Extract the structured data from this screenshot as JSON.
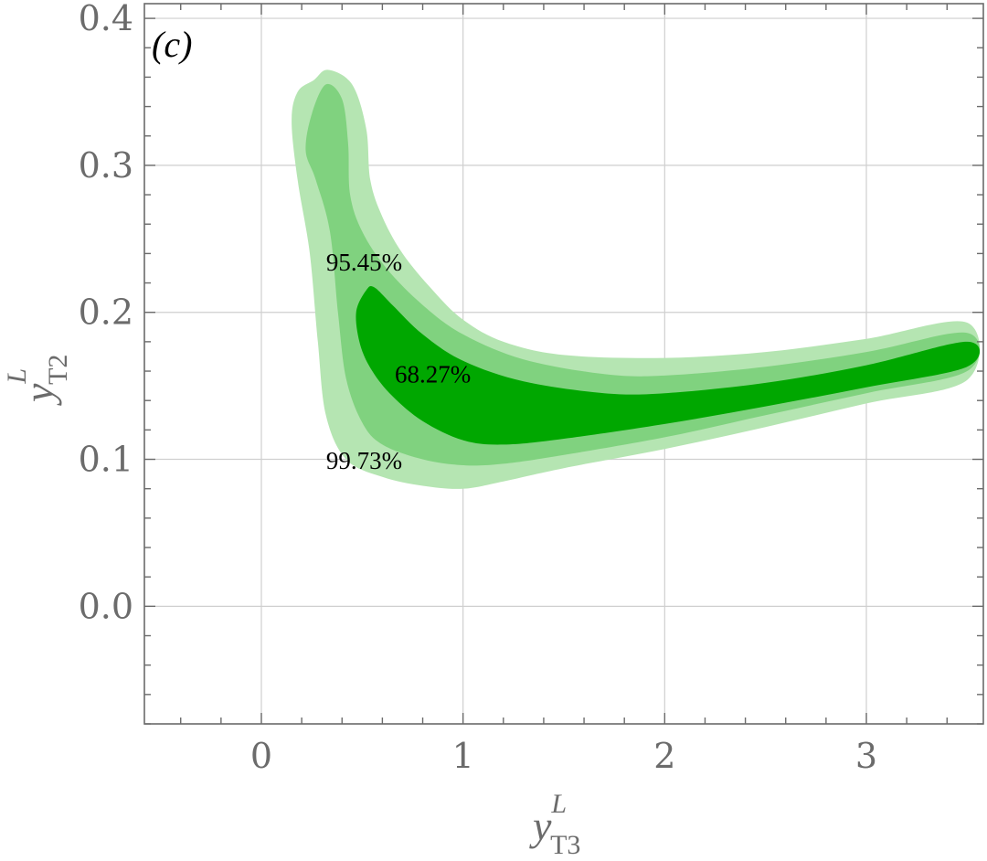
{
  "chart_data": {
    "type": "contour",
    "panel_label": "(c)",
    "xlabel": {
      "base": "y",
      "sup": "L",
      "sub": "T3"
    },
    "ylabel": {
      "base": "y",
      "sup": "L",
      "sub": "T2"
    },
    "xlim": [
      -0.58,
      3.58
    ],
    "ylim": [
      -0.08,
      0.41
    ],
    "x_ticks": [
      0,
      1,
      2,
      3
    ],
    "x_tick_labels": [
      "0",
      "1",
      "2",
      "3"
    ],
    "y_ticks": [
      0.0,
      0.1,
      0.2,
      0.3,
      0.4
    ],
    "y_tick_labels": [
      "0.0",
      "0.1",
      "0.2",
      "0.3",
      "0.4"
    ],
    "grid": true,
    "colors": {
      "region_99": "#b5e5b2",
      "region_95": "#80d27f",
      "region_68": "#00a700",
      "grid": "#cfcfcf",
      "axis": "#6b6b6b"
    },
    "regions": [
      {
        "label": "99.73%",
        "label_at": [
          0.51,
          0.099
        ],
        "boundary": [
          [
            0.26,
            0.358
          ],
          [
            0.33,
            0.365
          ],
          [
            0.45,
            0.355
          ],
          [
            0.52,
            0.325
          ],
          [
            0.54,
            0.29
          ],
          [
            0.6,
            0.265
          ],
          [
            0.7,
            0.24
          ],
          [
            0.85,
            0.215
          ],
          [
            1.0,
            0.195
          ],
          [
            1.2,
            0.18
          ],
          [
            1.5,
            0.171
          ],
          [
            2.0,
            0.169
          ],
          [
            2.5,
            0.173
          ],
          [
            3.0,
            0.182
          ],
          [
            3.5,
            0.193
          ],
          [
            3.5,
            0.154
          ],
          [
            3.0,
            0.138
          ],
          [
            2.5,
            0.122
          ],
          [
            2.0,
            0.107
          ],
          [
            1.5,
            0.094
          ],
          [
            1.2,
            0.085
          ],
          [
            1.0,
            0.08
          ],
          [
            0.8,
            0.082
          ],
          [
            0.6,
            0.088
          ],
          [
            0.42,
            0.1
          ],
          [
            0.32,
            0.13
          ],
          [
            0.28,
            0.18
          ],
          [
            0.24,
            0.24
          ],
          [
            0.18,
            0.29
          ],
          [
            0.15,
            0.33
          ],
          [
            0.18,
            0.35
          ]
        ]
      },
      {
        "label": "95.45%",
        "label_at": [
          0.51,
          0.234
        ],
        "boundary": [
          [
            0.25,
            0.335
          ],
          [
            0.32,
            0.355
          ],
          [
            0.4,
            0.345
          ],
          [
            0.43,
            0.315
          ],
          [
            0.44,
            0.28
          ],
          [
            0.5,
            0.255
          ],
          [
            0.62,
            0.23
          ],
          [
            0.8,
            0.205
          ],
          [
            1.0,
            0.185
          ],
          [
            1.3,
            0.168
          ],
          [
            1.7,
            0.158
          ],
          [
            2.0,
            0.157
          ],
          [
            2.5,
            0.163
          ],
          [
            3.0,
            0.173
          ],
          [
            3.5,
            0.186
          ],
          [
            3.5,
            0.16
          ],
          [
            3.0,
            0.145
          ],
          [
            2.5,
            0.13
          ],
          [
            2.0,
            0.115
          ],
          [
            1.5,
            0.103
          ],
          [
            1.2,
            0.097
          ],
          [
            1.0,
            0.096
          ],
          [
            0.8,
            0.1
          ],
          [
            0.6,
            0.11
          ],
          [
            0.5,
            0.125
          ],
          [
            0.42,
            0.155
          ],
          [
            0.38,
            0.2
          ],
          [
            0.34,
            0.255
          ],
          [
            0.27,
            0.29
          ],
          [
            0.22,
            0.31
          ]
        ]
      },
      {
        "label": "68.27%",
        "label_at": [
          0.85,
          0.158
        ],
        "boundary": [
          [
            0.47,
            0.2
          ],
          [
            0.52,
            0.215
          ],
          [
            0.56,
            0.217
          ],
          [
            0.65,
            0.205
          ],
          [
            0.8,
            0.185
          ],
          [
            1.0,
            0.167
          ],
          [
            1.3,
            0.153
          ],
          [
            1.7,
            0.145
          ],
          [
            2.0,
            0.145
          ],
          [
            2.5,
            0.152
          ],
          [
            3.0,
            0.164
          ],
          [
            3.5,
            0.18
          ],
          [
            3.5,
            0.163
          ],
          [
            3.0,
            0.149
          ],
          [
            2.5,
            0.136
          ],
          [
            2.0,
            0.124
          ],
          [
            1.5,
            0.114
          ],
          [
            1.2,
            0.11
          ],
          [
            1.0,
            0.113
          ],
          [
            0.8,
            0.126
          ],
          [
            0.65,
            0.143
          ],
          [
            0.55,
            0.16
          ],
          [
            0.49,
            0.178
          ]
        ]
      }
    ]
  }
}
